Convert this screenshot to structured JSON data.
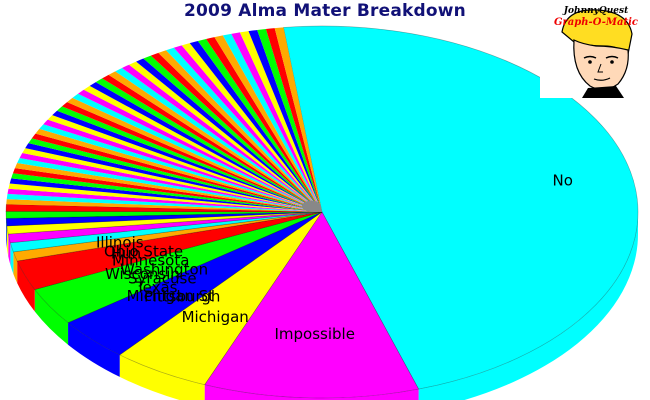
{
  "chart_data": {
    "type": "pie",
    "title": "2009 Alma Mater Breakdown",
    "style": "3d",
    "slices": [
      {
        "label": "No",
        "value": 47.0,
        "color": "#00ffff"
      },
      {
        "label": "Impossible",
        "value": 11.0,
        "color": "#ff00ff"
      },
      {
        "label": "Michigan",
        "value": 5.0,
        "color": "#ffff00"
      },
      {
        "label": "Michigan St",
        "value": 3.8,
        "color": "#0000ff"
      },
      {
        "label": "Wisconsin",
        "value": 3.3,
        "color": "#00ff00"
      },
      {
        "label": "Huh",
        "value": 2.6,
        "color": "#ff0000"
      },
      {
        "label": "Illinois",
        "value": 0.8,
        "color": "#ffaa00"
      },
      {
        "label": "Ohio State",
        "value": 0.8,
        "color": "#00ffff"
      },
      {
        "label": "Minnesota",
        "value": 0.75,
        "color": "#ff00ff"
      },
      {
        "label": "Washington",
        "value": 0.7,
        "color": "#ffff00"
      },
      {
        "label": "Syracuse",
        "value": 0.65,
        "color": "#0000ff"
      },
      {
        "label": "Texas",
        "value": 0.6,
        "color": "#00ff00"
      },
      {
        "label": "Pittsburgh",
        "value": 0.6,
        "color": "#ff0000"
      }
    ],
    "other_slices": {
      "count": 50,
      "value_each": 0.448,
      "palette": [
        "#ffaa00",
        "#00ffff",
        "#ff00ff",
        "#ffff00",
        "#0000ff",
        "#00ff00",
        "#ff0000"
      ]
    }
  },
  "logo": {
    "line1": "JohnnyQuest",
    "line2": "Graph-O-Matic"
  },
  "colors": {
    "title": "#111177",
    "depth": "#888888",
    "edge": "#000000"
  }
}
